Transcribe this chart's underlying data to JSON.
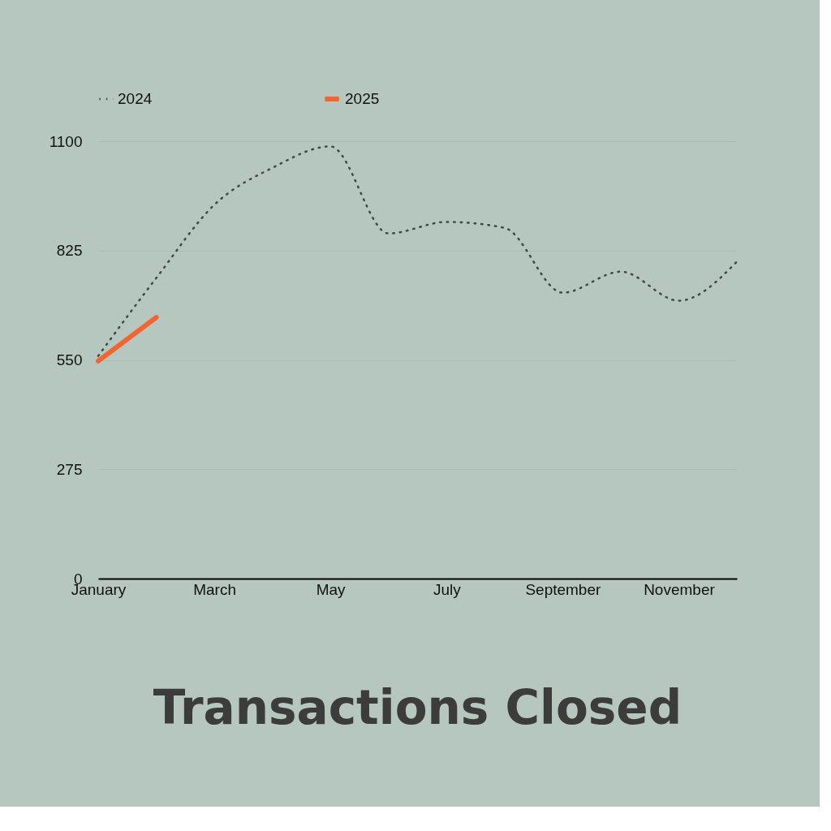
{
  "chart_data": {
    "type": "line",
    "title": "Transactions Closed",
    "categories": [
      "January",
      null,
      "March",
      null,
      "May",
      null,
      "July",
      null,
      "September",
      null,
      "November",
      null
    ],
    "series": [
      {
        "name": "2024",
        "color": "#3d4a45",
        "line_style": "dotted",
        "values": [
          560,
          756,
          940,
          1033,
          1087,
          868,
          897,
          882,
          719,
          772,
          699,
          797
        ]
      },
      {
        "name": "2025",
        "color": "#f26430",
        "line_style": "solid",
        "values": [
          547,
          657,
          null,
          null,
          null,
          null,
          null,
          null,
          null,
          null,
          null,
          null
        ]
      }
    ],
    "ylim": [
      0,
      1100
    ],
    "yticks": [
      0,
      275,
      550,
      825,
      1100
    ],
    "grid": "y",
    "legend": "top",
    "marker": "none"
  }
}
